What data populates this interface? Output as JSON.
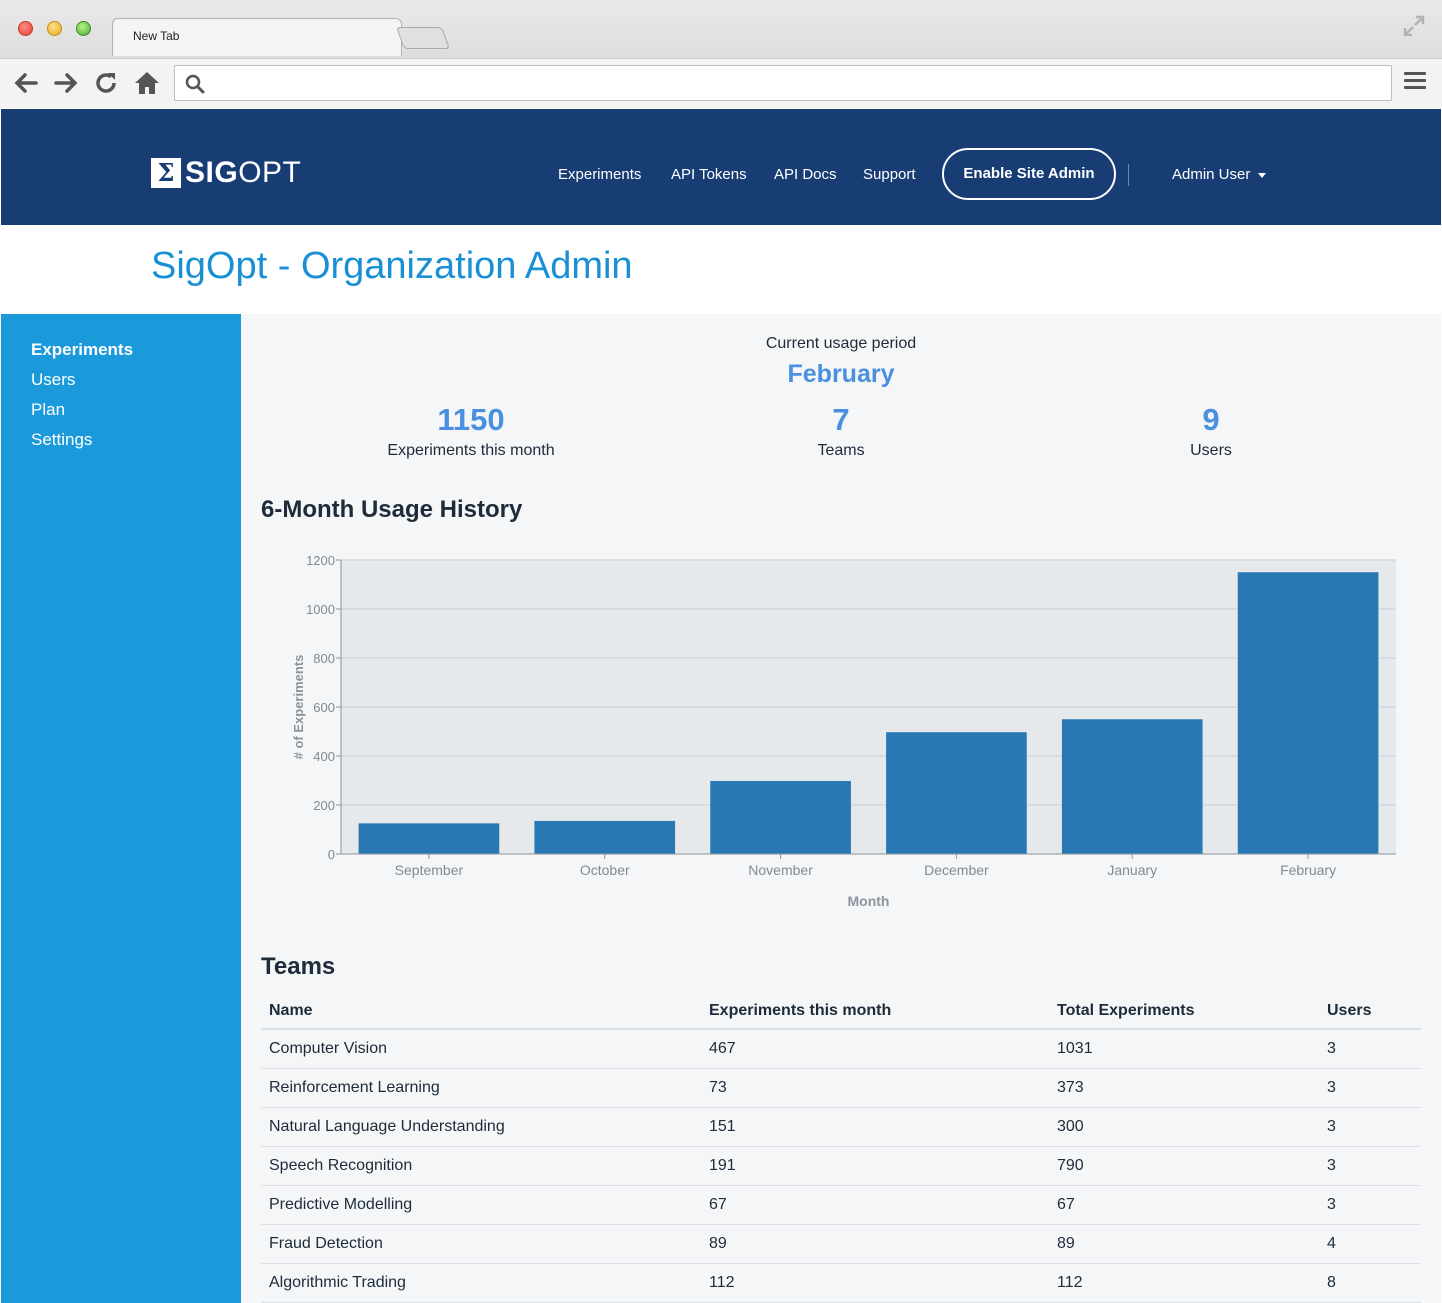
{
  "browser": {
    "tab_title": "New Tab",
    "url": "",
    "icons": [
      "back-arrow-icon",
      "forward-arrow-icon",
      "reload-icon",
      "home-icon",
      "search-icon",
      "menu-icon",
      "expand-icon"
    ]
  },
  "header": {
    "logo_mark": "Σ",
    "logo_bold": "SIG",
    "logo_light": "OPT",
    "nav": [
      "Experiments",
      "API Tokens",
      "API Docs",
      "Support"
    ],
    "site_admin_button": "Enable Site Admin",
    "user_menu": "Admin User",
    "colors": {
      "header_bg": "#173d74",
      "accent": "#1a90d4"
    }
  },
  "page": {
    "title": "SigOpt - Organization Admin"
  },
  "sidebar": {
    "items": [
      {
        "label": "Experiments",
        "active": true
      },
      {
        "label": "Users",
        "active": false
      },
      {
        "label": "Plan",
        "active": false
      },
      {
        "label": "Settings",
        "active": false
      }
    ],
    "color": "#1a9adb"
  },
  "usage": {
    "period_label": "Current usage period",
    "period_month": "February",
    "stats": [
      {
        "value": "1150",
        "label": "Experiments this month"
      },
      {
        "value": "7",
        "label": "Teams"
      },
      {
        "value": "9",
        "label": "Users"
      }
    ]
  },
  "history_title": "6-Month Usage History",
  "chart_data": {
    "type": "bar",
    "categories": [
      "September",
      "October",
      "November",
      "December",
      "January",
      "February"
    ],
    "values": [
      125,
      135,
      298,
      497,
      550,
      1150
    ],
    "title": "",
    "xlabel": "Month",
    "ylabel": "# of Experiments",
    "ylim": [
      0,
      1200
    ],
    "yticks": [
      0,
      200,
      400,
      600,
      800,
      1000,
      1200
    ],
    "grid": true,
    "bar_color": "#2878b4",
    "plot_bg": "#e6e9ec"
  },
  "teams": {
    "title": "Teams",
    "columns": [
      "Name",
      "Experiments this month",
      "Total Experiments",
      "Users"
    ],
    "rows": [
      [
        "Computer Vision",
        "467",
        "1031",
        "3"
      ],
      [
        "Reinforcement Learning",
        "73",
        "373",
        "3"
      ],
      [
        "Natural Language Understanding",
        "151",
        "300",
        "3"
      ],
      [
        "Speech Recognition",
        "191",
        "790",
        "3"
      ],
      [
        "Predictive Modelling",
        "67",
        "67",
        "3"
      ],
      [
        "Fraud Detection",
        "89",
        "89",
        "4"
      ],
      [
        "Algorithmic Trading",
        "112",
        "112",
        "8"
      ]
    ]
  }
}
